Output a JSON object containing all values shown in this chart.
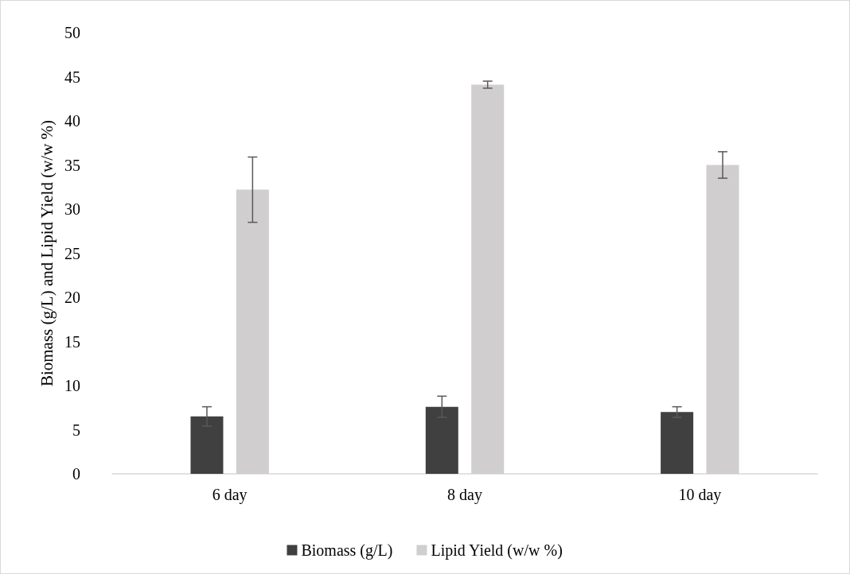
{
  "chart_data": {
    "type": "bar",
    "ylabel": "Biomass (g/L) and Lipid Yield (w/w %)",
    "categories": [
      "6 day",
      "8 day",
      "10 day"
    ],
    "series": [
      {
        "name": "Biomass (g/L)",
        "color": "#404040",
        "values": [
          6.5,
          7.6,
          7.0
        ],
        "errors": [
          1.1,
          1.2,
          0.6
        ]
      },
      {
        "name": "Lipid Yield (w/w %)",
        "color": "#d0cece",
        "values": [
          32.2,
          44.1,
          35.0
        ],
        "errors": [
          3.7,
          0.4,
          1.5
        ]
      }
    ],
    "ylim": [
      0,
      50
    ],
    "yticks": [
      0,
      5,
      10,
      15,
      20,
      25,
      30,
      35,
      40,
      45,
      50
    ],
    "grid": false,
    "legend": "bottom"
  }
}
